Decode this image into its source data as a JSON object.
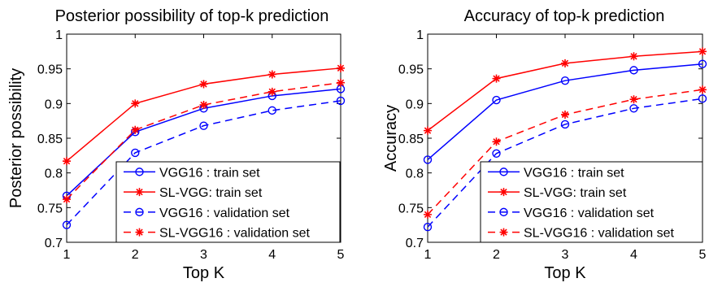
{
  "chart_data": [
    {
      "type": "line",
      "title": "Posterior possibility of top-k prediction",
      "xlabel": "Top K",
      "ylabel": "Posterior possibility",
      "x": [
        1,
        2,
        3,
        4,
        5
      ],
      "xlim": [
        1,
        5
      ],
      "ylim": [
        0.7,
        1
      ],
      "x_ticks": [
        "1",
        "2",
        "3",
        "4",
        "5"
      ],
      "y_ticks": [
        "0.7",
        "0.75",
        "0.8",
        "0.85",
        "0.9",
        "0.95",
        "1"
      ],
      "grid": false,
      "legend_position": "bottom-right",
      "series": [
        {
          "name": "VGG16 : train set",
          "color": "#0000ff",
          "marker": "circle",
          "dashed": false,
          "values": [
            0.767,
            0.859,
            0.893,
            0.911,
            0.921
          ]
        },
        {
          "name": "SL-VGG: train set",
          "color": "#ff0000",
          "marker": "star",
          "dashed": false,
          "values": [
            0.817,
            0.9,
            0.928,
            0.942,
            0.951
          ]
        },
        {
          "name": "VGG16 : validation set",
          "color": "#0000ff",
          "marker": "circle",
          "dashed": true,
          "values": [
            0.725,
            0.829,
            0.868,
            0.89,
            0.904
          ]
        },
        {
          "name": "SL-VGG16 : validation set",
          "color": "#ff0000",
          "marker": "star",
          "dashed": true,
          "values": [
            0.762,
            0.862,
            0.898,
            0.917,
            0.93
          ]
        }
      ]
    },
    {
      "type": "line",
      "title": "Accuracy of top-k prediction",
      "xlabel": "Top K",
      "ylabel": "Accuracy",
      "x": [
        1,
        2,
        3,
        4,
        5
      ],
      "xlim": [
        1,
        5
      ],
      "ylim": [
        0.7,
        1
      ],
      "x_ticks": [
        "1",
        "2",
        "3",
        "4",
        "5"
      ],
      "y_ticks": [
        "0.7",
        "0.75",
        "0.8",
        "0.85",
        "0.9",
        "0.95",
        "1"
      ],
      "grid": false,
      "legend_position": "bottom-right",
      "series": [
        {
          "name": "VGG16 : train set",
          "color": "#0000ff",
          "marker": "circle",
          "dashed": false,
          "values": [
            0.819,
            0.905,
            0.933,
            0.948,
            0.957
          ]
        },
        {
          "name": "SL-VGG: train set",
          "color": "#ff0000",
          "marker": "star",
          "dashed": false,
          "values": [
            0.861,
            0.936,
            0.958,
            0.968,
            0.975
          ]
        },
        {
          "name": "VGG16 : validation set",
          "color": "#0000ff",
          "marker": "circle",
          "dashed": true,
          "values": [
            0.722,
            0.828,
            0.87,
            0.893,
            0.907
          ]
        },
        {
          "name": "SL-VGG16 : validation set",
          "color": "#ff0000",
          "marker": "star",
          "dashed": true,
          "values": [
            0.74,
            0.845,
            0.884,
            0.906,
            0.92
          ]
        }
      ]
    }
  ]
}
